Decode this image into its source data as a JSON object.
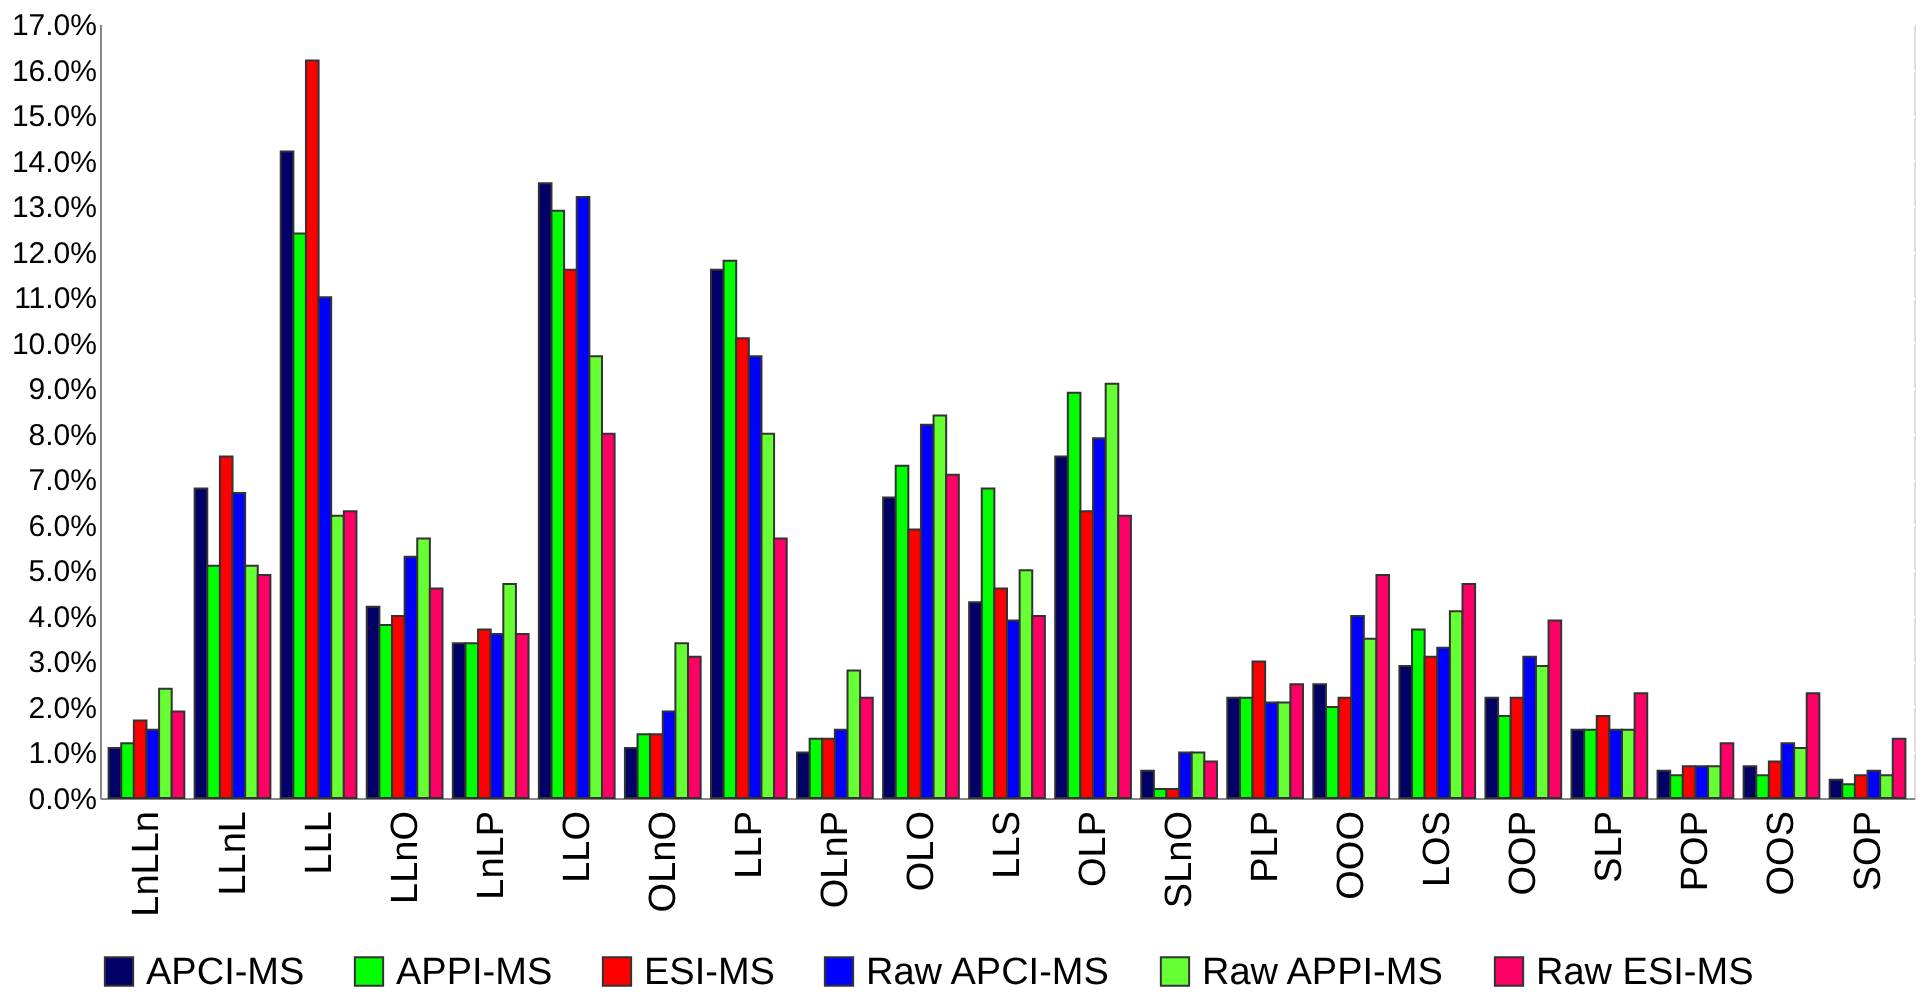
{
  "chart_data": {
    "type": "bar",
    "categories": [
      "LnLLn",
      "LLnL",
      "LLL",
      "LLnO",
      "LnLP",
      "LLO",
      "OLnO",
      "LLP",
      "OLnP",
      "OLO",
      "LLS",
      "OLP",
      "SLnO",
      "PLP",
      "OOO",
      "LOS",
      "OOP",
      "SLP",
      "POP",
      "OOS",
      "SOP"
    ],
    "series": [
      {
        "name": "APCI-MS",
        "color": "#000066",
        "values": [
          1.1,
          6.8,
          14.2,
          4.2,
          3.4,
          13.5,
          1.1,
          11.6,
          1.0,
          6.6,
          4.3,
          7.5,
          0.6,
          2.2,
          2.5,
          2.9,
          2.2,
          1.5,
          0.6,
          0.7,
          0.4
        ]
      },
      {
        "name": "APPI-MS",
        "color": "#00ff00",
        "values": [
          1.2,
          5.1,
          12.4,
          3.8,
          3.4,
          12.9,
          1.4,
          11.8,
          1.3,
          7.3,
          6.8,
          8.9,
          0.2,
          2.2,
          2.0,
          3.7,
          1.8,
          1.5,
          0.5,
          0.5,
          0.3
        ]
      },
      {
        "name": "ESI-MS",
        "color": "#ff0000",
        "values": [
          1.7,
          7.5,
          16.2,
          4.0,
          3.7,
          11.6,
          1.4,
          10.1,
          1.3,
          5.9,
          4.6,
          6.3,
          0.2,
          3.0,
          2.2,
          3.1,
          2.2,
          1.8,
          0.7,
          0.8,
          0.5
        ]
      },
      {
        "name": "Raw APCI-MS",
        "color": "#0000ff",
        "values": [
          1.5,
          6.7,
          11.0,
          5.3,
          3.6,
          13.2,
          1.9,
          9.7,
          1.5,
          8.2,
          3.9,
          7.9,
          1.0,
          2.1,
          4.0,
          3.3,
          3.1,
          1.5,
          0.7,
          1.2,
          0.6
        ]
      },
      {
        "name": "Raw APPI-MS",
        "color": "#66ff33",
        "values": [
          2.4,
          5.1,
          6.2,
          5.7,
          4.7,
          9.7,
          3.4,
          8.0,
          2.8,
          8.4,
          5.0,
          9.1,
          1.0,
          2.1,
          3.5,
          4.1,
          2.9,
          1.5,
          0.7,
          1.1,
          0.5
        ]
      },
      {
        "name": "Raw ESI-MS",
        "color": "#ff0066",
        "values": [
          1.9,
          4.9,
          6.3,
          4.6,
          3.6,
          8.0,
          3.1,
          5.7,
          2.2,
          7.1,
          4.0,
          6.2,
          0.8,
          2.5,
          4.9,
          4.7,
          3.9,
          2.3,
          1.2,
          2.3,
          1.3
        ]
      }
    ],
    "ylim": [
      0,
      17
    ],
    "yticks": [
      {
        "value": 0,
        "label": "0.0%"
      },
      {
        "value": 1,
        "label": "1.0%"
      },
      {
        "value": 2,
        "label": "2.0%"
      },
      {
        "value": 3,
        "label": "3.0%"
      },
      {
        "value": 4,
        "label": "4.0%"
      },
      {
        "value": 5,
        "label": "5.0%"
      },
      {
        "value": 6,
        "label": "6.0%"
      },
      {
        "value": 7,
        "label": "7.0%"
      },
      {
        "value": 8,
        "label": "8.0%"
      },
      {
        "value": 9,
        "label": "9.0%"
      },
      {
        "value": 10,
        "label": "10.0%"
      },
      {
        "value": 11,
        "label": "11.0%"
      },
      {
        "value": 12,
        "label": "12.0%"
      },
      {
        "value": 13,
        "label": "13.0%"
      },
      {
        "value": 14,
        "label": "14.0%"
      },
      {
        "value": 15,
        "label": "15.0%"
      },
      {
        "value": 16,
        "label": "16.0%"
      },
      {
        "value": 17,
        "label": "17.0%"
      }
    ],
    "grid": "y",
    "legend": "bottom"
  }
}
